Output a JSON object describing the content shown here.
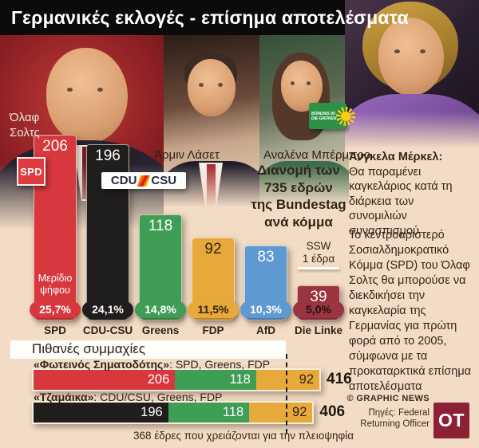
{
  "header": {
    "title": "Γερμανικές εκλογές - επίσημα αποτελέσματα"
  },
  "photos": {
    "scholz_line1": "Όλαφ",
    "scholz_line2": "Σολτς",
    "laschet_label": "Άρμιν Λάσετ",
    "baerbock_label": "Αναλένα Μπέρμπρο"
  },
  "logos": {
    "spd": "SPD",
    "cdu": "CDU",
    "csu": "CSU",
    "greens_line1": "BÜNDNIS 90",
    "greens_line2": "DIE GRÜNEN",
    "ot": "OT"
  },
  "chart_data": {
    "type": "bar",
    "title": "Διανομή των 735 εδρών της Bundestag ανά κόμμα",
    "title_lines": [
      "Διανομή των",
      "735 εδρών",
      "της Bundestag",
      "ανά κόμμα"
    ],
    "total_seats": 735,
    "categories": [
      "SPD",
      "CDU-CSU",
      "Greens",
      "FDP",
      "AfD",
      "Die Linke"
    ],
    "series": [
      {
        "name": "Έδρες",
        "values": [
          206,
          196,
          118,
          92,
          83,
          39
        ]
      },
      {
        "name": "Μερίδιο ψήφου",
        "values": [
          "25,7%",
          "24,1%",
          "14,8%",
          "11,5%",
          "10,3%",
          "5,0%"
        ]
      }
    ],
    "bar_colors": [
      "#d6383e",
      "#201d1d",
      "#3f9d55",
      "#e6a93a",
      "#5f99d2",
      "#9a3440"
    ],
    "value_text_colors": [
      "#ffffff",
      "#ffffff",
      "#ffffff",
      "#35220f",
      "#ffffff",
      "#ffffff"
    ],
    "share_text_colors": [
      "#ffffff",
      "#ffffff",
      "#ffffff",
      "#35220f",
      "#ffffff",
      "#241014"
    ],
    "share_label": "Μερίδιο ψήφου",
    "ssw_note": {
      "name": "SSW",
      "seats_label": "1 έδρα"
    },
    "layout": {
      "grid": false,
      "legend": "none",
      "baseline": "bottom"
    }
  },
  "merkel_note": {
    "title": "Άνγκελα Μέρκελ:",
    "body": "Θα παραμένει καγκελάριος κατά τη διάρκεια των συνομιλιών συνασπισμού"
  },
  "analysis": "Το κεντροαριστερό Σοσιαλδημοκρατικό Κόμμα (SPD) του Όλαφ Σολτς θα μπορούσε να διεκδικήσει την καγκελαρία της Γερμανίας για πρώτη φορά από το 2005, σύμφωνα με τα προκαταρκτικά επίσημα αποτελέσματα",
  "coalitions": {
    "heading": "Πιθανές συμμαχίες",
    "rows": [
      {
        "name": "«Φωτεινός Σηματοδότης»",
        "parties": ": SPD, Greens, FDP",
        "segments": [
          {
            "label": "SPD",
            "seats": 206,
            "color": "#d6383e",
            "text_color": "#ffffff"
          },
          {
            "label": "Greens",
            "seats": 118,
            "color": "#3f9d55",
            "text_color": "#ffffff"
          },
          {
            "label": "FDP",
            "seats": 92,
            "color": "#e6a93a",
            "text_color": "#35220f"
          }
        ],
        "total": 416
      },
      {
        "name": "«Τζαμάικα»",
        "parties": ": CDU/CSU, Greens, FDP",
        "segments": [
          {
            "label": "CDU/CSU",
            "seats": 196,
            "color": "#201d1d",
            "text_color": "#ffffff"
          },
          {
            "label": "Greens",
            "seats": 118,
            "color": "#3f9d55",
            "text_color": "#ffffff"
          },
          {
            "label": "FDP",
            "seats": 92,
            "color": "#e6a93a",
            "text_color": "#35220f"
          }
        ],
        "total": 406
      }
    ],
    "majority_seats": 368,
    "majority_note": "368 έδρες που χρειάζονται για την πλειοψηφία"
  },
  "footer": {
    "credit": "© GRAPHIC NEWS",
    "sources_line1": "Πηγές: Federal",
    "sources_line2": "Returning Officer"
  }
}
